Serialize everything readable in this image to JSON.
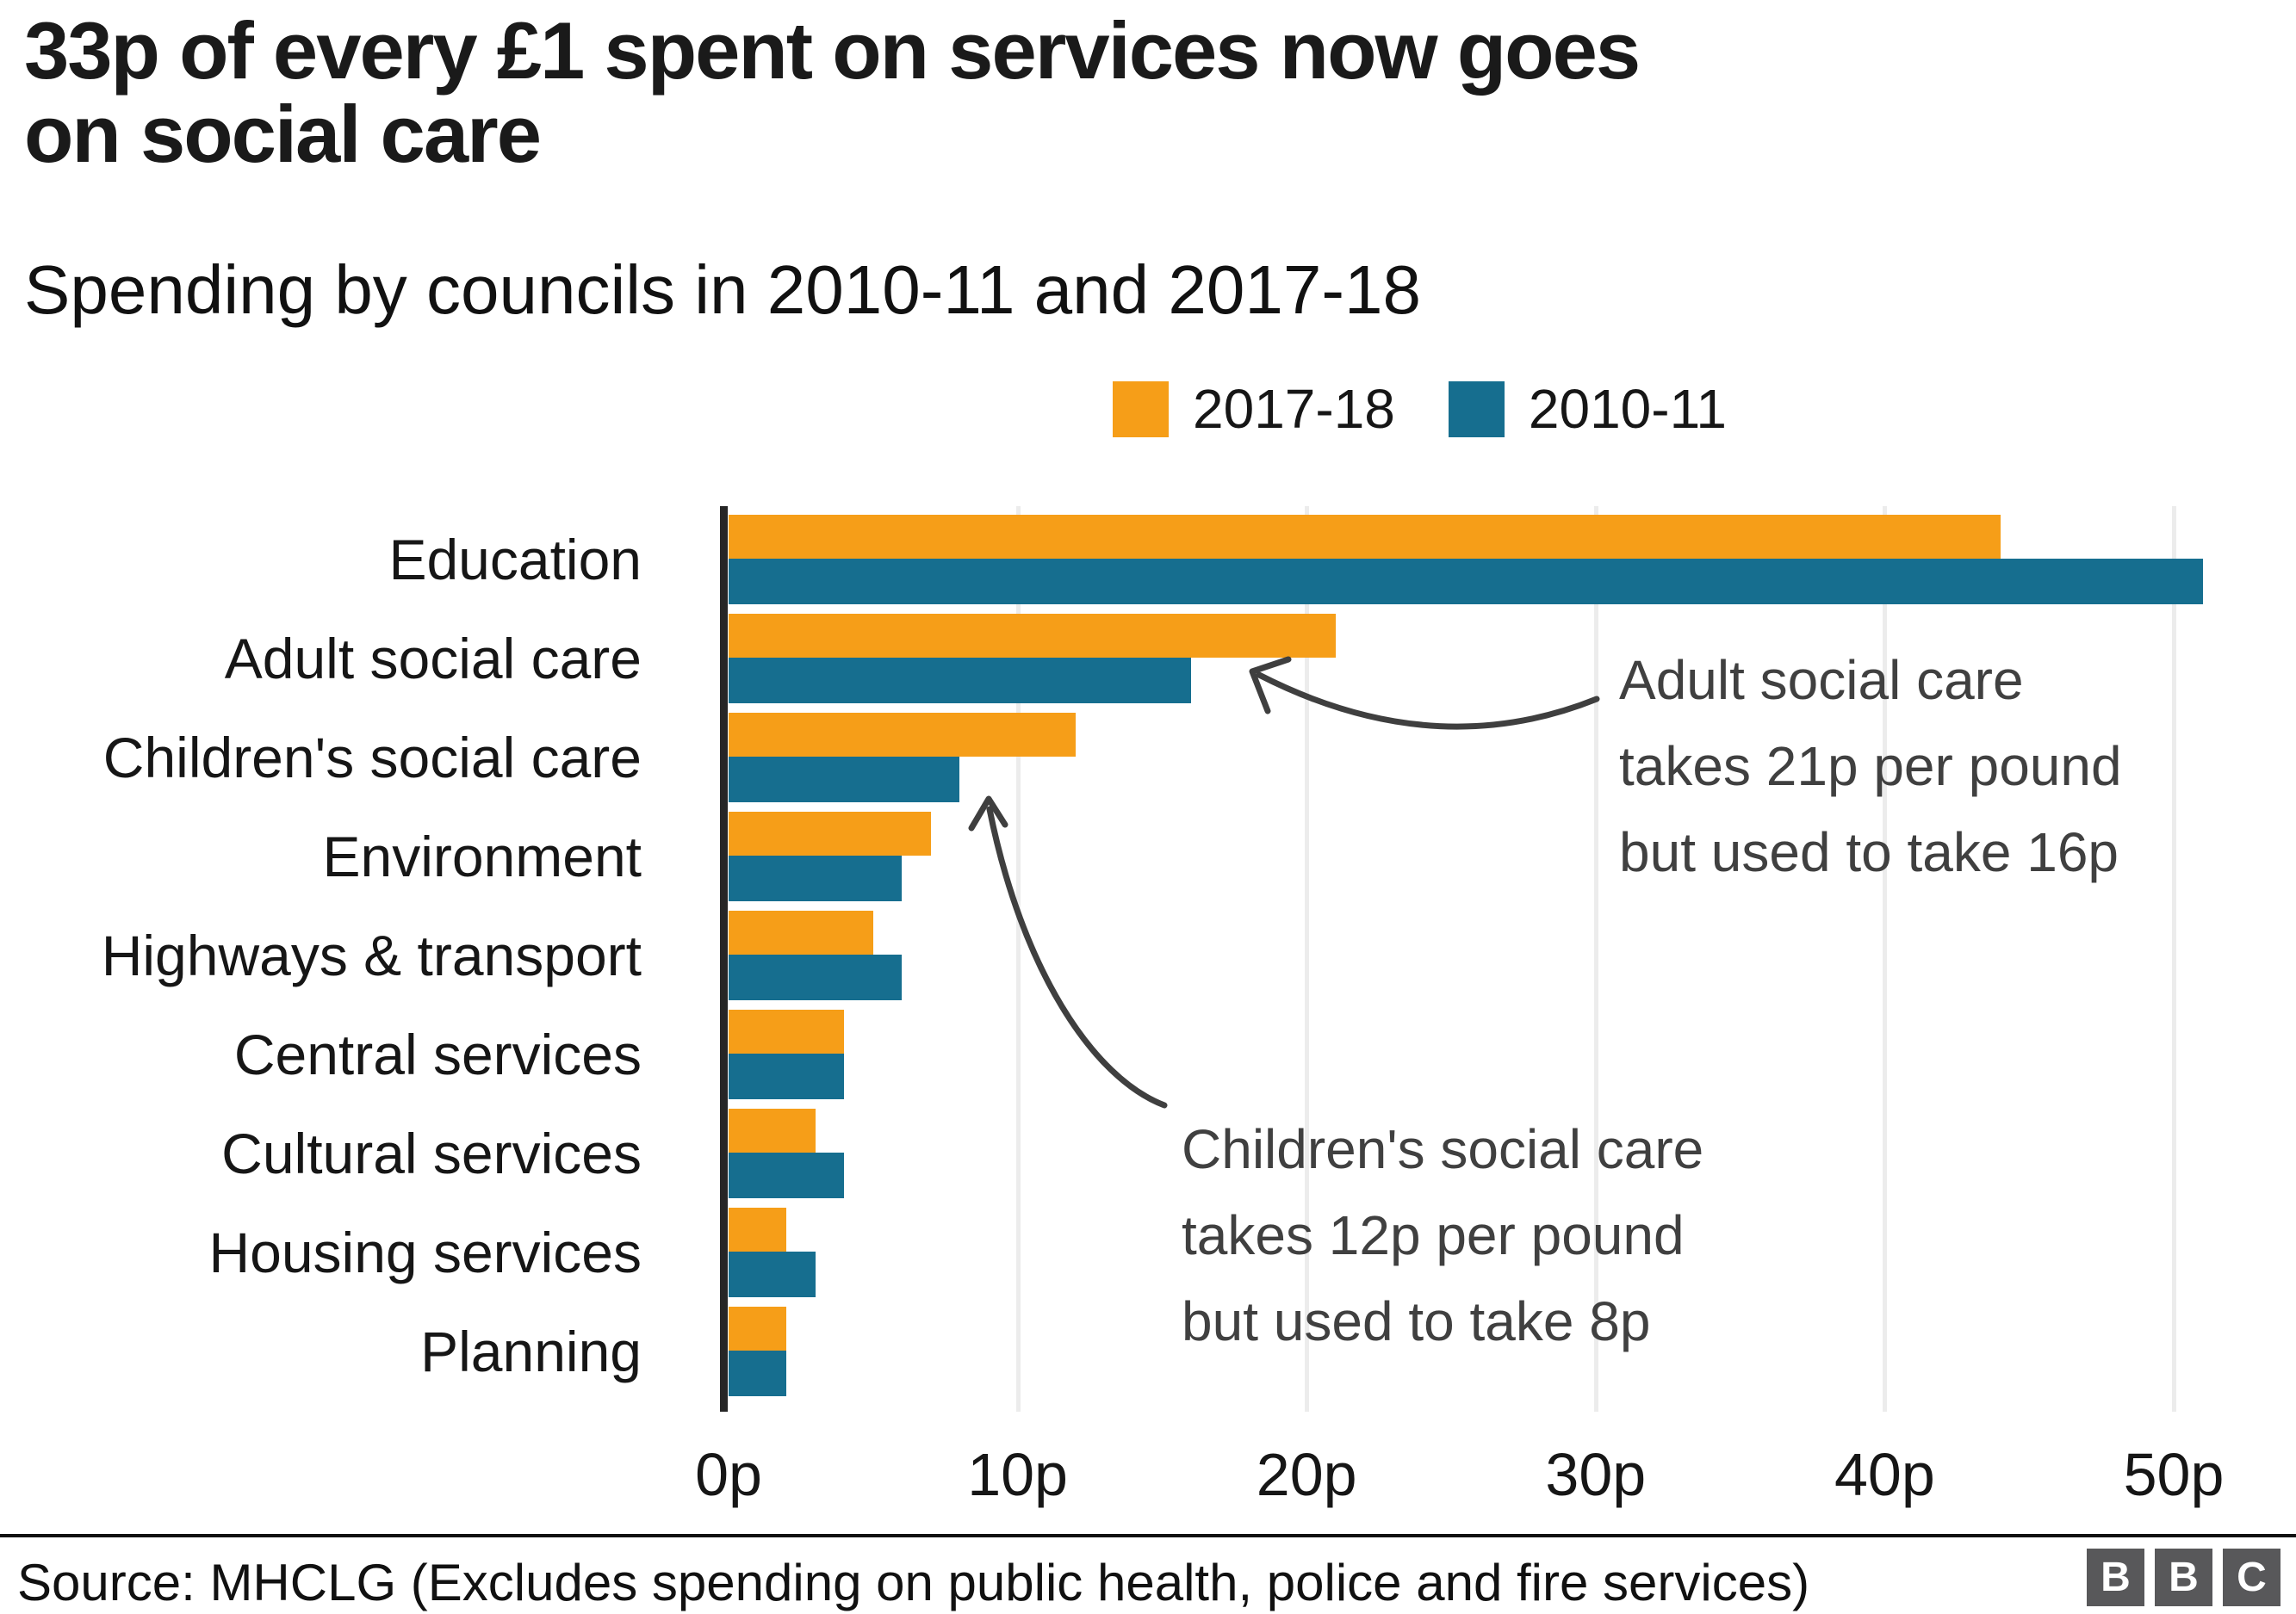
{
  "title_lines": [
    "33p of every £1 spent on services now goes",
    "on social care"
  ],
  "subtitle": "Spending by councils in 2010-11 and 2017-18",
  "legend": {
    "items": [
      {
        "label": "2017-18",
        "color": "#F69E18"
      },
      {
        "label": "2010-11",
        "color": "#166E8F"
      }
    ]
  },
  "chart_data": {
    "type": "bar",
    "orientation": "horizontal",
    "unit": "p",
    "categories": [
      "Education",
      "Adult social care",
      "Children's social care",
      "Environment",
      "Highways & transport",
      "Central services",
      "Cultural services",
      "Housing services",
      "Planning"
    ],
    "series": [
      {
        "name": "2017-18",
        "color": "#F69E18",
        "values": [
          44,
          21,
          12,
          7,
          5,
          4,
          3,
          2,
          2
        ]
      },
      {
        "name": "2010-11",
        "color": "#166E8F",
        "values": [
          51,
          16,
          8,
          6,
          6,
          4,
          4,
          3,
          2
        ]
      }
    ],
    "x_ticks": [
      "0p",
      "10p",
      "20p",
      "30p",
      "40p",
      "50p"
    ],
    "x_tick_values": [
      0,
      10,
      20,
      30,
      40,
      50
    ],
    "xlim": [
      0,
      52
    ],
    "grid": "vertical-light",
    "legend_position": "top-right",
    "axis_color": "#262626",
    "gridline_color": "#ececec"
  },
  "annotations": {
    "adult": {
      "lines": [
        "Adult social care",
        "takes 21p per pound",
        "but used to take 16p"
      ]
    },
    "children": {
      "lines": [
        "Children's social care",
        "takes 12p per pound",
        "but used to take 8p"
      ]
    }
  },
  "footer": {
    "source": "Source: MHCLG (Excludes spending on public health, police and fire services)",
    "logo_letters": [
      "B",
      "B",
      "C"
    ]
  }
}
